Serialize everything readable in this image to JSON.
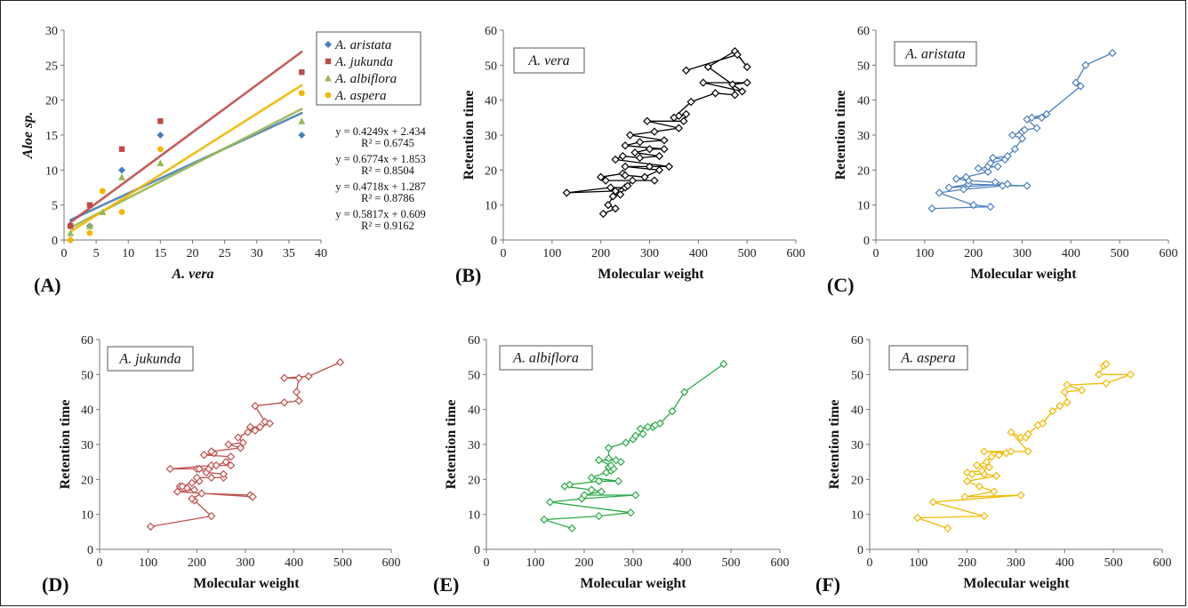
{
  "chart_data": [
    {
      "id": "A",
      "panel_label": "(A)",
      "type": "scatter",
      "xlabel": "A. vera",
      "ylabel": "Aloe sp.",
      "xlim": [
        0,
        40
      ],
      "ylim": [
        0,
        30
      ],
      "x_ticks": [
        "0",
        "5",
        "10",
        "15",
        "20",
        "25",
        "30",
        "35",
        "40"
      ],
      "y_ticks": [
        "0",
        "5",
        "10",
        "15",
        "20",
        "25",
        "30"
      ],
      "legend_position": "top-right",
      "series": [
        {
          "name": "A. aristata",
          "color": "#4a7ebb",
          "marker": "diamond",
          "x": [
            1,
            1,
            4,
            9,
            15,
            37
          ],
          "y": [
            2,
            0,
            2,
            10,
            15,
            15
          ],
          "trend": {
            "slope": 0.4249,
            "intercept": 2.434
          },
          "equation": "y = 0.4249x + 2.434",
          "r2": "R² = 0.6745"
        },
        {
          "name": "A. jukunda",
          "color": "#be4b48",
          "marker": "square",
          "x": [
            1,
            4,
            9,
            15,
            37
          ],
          "y": [
            2,
            5,
            13,
            17,
            24
          ],
          "trend": {
            "slope": 0.6774,
            "intercept": 1.853
          },
          "equation": "y = 0.6774x + 1.853",
          "r2": "R² = 0.8504"
        },
        {
          "name": "A. albiflora",
          "color": "#98b954",
          "marker": "triangle",
          "x": [
            1,
            4,
            6,
            9,
            15,
            37
          ],
          "y": [
            1,
            2,
            4,
            9,
            11,
            17
          ],
          "trend": {
            "slope": 0.4718,
            "intercept": 1.287
          },
          "equation": "y = 0.4718x + 1.287",
          "r2": "R² = 0.8786"
        },
        {
          "name": "A. aspera",
          "color": "#f2b800",
          "marker": "circle",
          "x": [
            1,
            4,
            6,
            9,
            15,
            37
          ],
          "y": [
            0,
            1,
            7,
            4,
            13,
            21
          ],
          "trend": {
            "slope": 0.5817,
            "intercept": 0.609
          },
          "equation": "y = 0.5817x + 0.609",
          "r2": "R² = 0.9162"
        }
      ]
    },
    {
      "id": "B",
      "panel_label": "(B)",
      "type": "line",
      "species_label": "A. vera",
      "color": "#000000",
      "xlabel": "Molecular weight",
      "ylabel": "Retention time",
      "xlim": [
        0,
        600
      ],
      "ylim": [
        0,
        60
      ],
      "x_ticks": [
        "0",
        "100",
        "200",
        "300",
        "400",
        "500",
        "600"
      ],
      "y_ticks": [
        "0",
        "10",
        "20",
        "30",
        "40",
        "50",
        "60"
      ],
      "x": [
        205,
        230,
        215,
        225,
        240,
        250,
        220,
        130,
        230,
        255,
        265,
        310,
        210,
        200,
        245,
        250,
        290,
        320,
        250,
        300,
        340,
        230,
        245,
        280,
        320,
        270,
        300,
        330,
        250,
        280,
        330,
        260,
        310,
        360,
        295,
        370,
        375,
        360,
        350,
        385,
        435,
        475,
        470,
        500,
        410,
        490,
        420,
        475,
        500,
        480,
        375
      ],
      "y": [
        7.5,
        9,
        10,
        12.5,
        13,
        15,
        15,
        13.5,
        14,
        15.5,
        17,
        17,
        17,
        18,
        19,
        18.5,
        18,
        20,
        21,
        21,
        21,
        23,
        24,
        23.5,
        24,
        25,
        26,
        26,
        27,
        28,
        28.5,
        30,
        31,
        32,
        34,
        34,
        36,
        35.5,
        35,
        39.5,
        42,
        41.5,
        44.5,
        45,
        45,
        42.5,
        49.5,
        54,
        49.5,
        53,
        48.5
      ]
    },
    {
      "id": "C",
      "panel_label": "(C)",
      "type": "line",
      "species_label": "A. aristata",
      "color": "#4f81bd",
      "xlabel": "Molecular weight",
      "ylabel": "Retention time",
      "xlim": [
        0,
        600
      ],
      "ylim": [
        0,
        60
      ],
      "x_ticks": [
        "0",
        "100",
        "200",
        "300",
        "400",
        "500",
        "600"
      ],
      "y_ticks": [
        "0",
        "10",
        "20",
        "30",
        "40",
        "50",
        "60"
      ],
      "x": [
        115,
        235,
        200,
        130,
        180,
        260,
        310,
        190,
        150,
        270,
        245,
        190,
        165,
        185,
        230,
        210,
        250,
        230,
        235,
        265,
        240,
        270,
        285,
        300,
        280,
        300,
        305,
        330,
        310,
        340,
        320,
        350,
        420,
        410,
        430,
        485
      ],
      "y": [
        9,
        9.5,
        10,
        13.5,
        14.5,
        15.5,
        15.5,
        16,
        15,
        16,
        16.5,
        17,
        17.5,
        18,
        19.5,
        20.5,
        21,
        21,
        22,
        23,
        23.5,
        24,
        26,
        29,
        30,
        31,
        31.5,
        32,
        34.5,
        35,
        35,
        36,
        44,
        45,
        50,
        53.5
      ]
    },
    {
      "id": "D",
      "panel_label": "(D)",
      "type": "line",
      "species_label": "A. jukunda",
      "color": "#c0504d",
      "xlabel": "Molecular weight",
      "ylabel": "Retention time",
      "xlim": [
        0,
        600
      ],
      "ylim": [
        0,
        60
      ],
      "x_ticks": [
        "0",
        "100",
        "200",
        "300",
        "400",
        "500",
        "600"
      ],
      "y_ticks": [
        "0",
        "10",
        "20",
        "30",
        "40",
        "50",
        "60"
      ],
      "x": [
        105,
        230,
        195,
        190,
        210,
        310,
        315,
        160,
        195,
        180,
        165,
        170,
        190,
        205,
        200,
        230,
        255,
        255,
        220,
        200,
        205,
        225,
        145,
        230,
        270,
        240,
        260,
        270,
        215,
        235,
        230,
        290,
        265,
        295,
        285,
        305,
        320,
        310,
        330,
        350,
        340,
        320,
        380,
        410,
        405,
        410,
        380,
        430,
        495
      ],
      "y": [
        6.5,
        9.5,
        14,
        14.5,
        16,
        15.5,
        15,
        16.5,
        17,
        17.5,
        18,
        18,
        19,
        19.5,
        20.5,
        20.5,
        20.5,
        21.5,
        22,
        23,
        23,
        23,
        23,
        24,
        24,
        24,
        25,
        26.5,
        27,
        27.5,
        28,
        29,
        30,
        30.5,
        32,
        33.5,
        34,
        35,
        35,
        36,
        36.5,
        41,
        42,
        42.5,
        45,
        49,
        49,
        49.5,
        53.5
      ]
    },
    {
      "id": "E",
      "panel_label": "(E)",
      "type": "line",
      "species_label": "A. albiflora",
      "color": "#2daa4a",
      "xlabel": "Molecular weight",
      "ylabel": "Retention time",
      "xlim": [
        0,
        600
      ],
      "ylim": [
        0,
        60
      ],
      "x_ticks": [
        "0",
        "100",
        "200",
        "300",
        "400",
        "500",
        "600"
      ],
      "y_ticks": [
        "0",
        "10",
        "20",
        "30",
        "40",
        "50",
        "60"
      ],
      "x": [
        175,
        118,
        230,
        295,
        130,
        195,
        305,
        200,
        235,
        215,
        160,
        170,
        230,
        270,
        215,
        245,
        255,
        260,
        250,
        255,
        230,
        265,
        275,
        250,
        250,
        285,
        300,
        305,
        320,
        315,
        340,
        330,
        345,
        355,
        380,
        405,
        485
      ],
      "y": [
        6,
        8.5,
        9.5,
        10.5,
        13.5,
        14.5,
        15.5,
        15.5,
        16.5,
        17,
        18,
        18.5,
        19.5,
        19.5,
        20.5,
        22,
        22.5,
        23,
        23.5,
        24,
        25.5,
        25.5,
        25,
        26,
        29,
        30.5,
        31.5,
        32.5,
        33,
        34.5,
        35,
        35,
        35.5,
        36,
        39.5,
        45,
        53
      ]
    },
    {
      "id": "F",
      "panel_label": "(F)",
      "type": "line",
      "species_label": "A. aspera",
      "color": "#f2b800",
      "xlabel": "Molecular weight",
      "ylabel": "Retention time",
      "xlim": [
        0,
        600
      ],
      "ylim": [
        0,
        60
      ],
      "x_ticks": [
        "0",
        "100",
        "200",
        "300",
        "400",
        "500",
        "600"
      ],
      "y_ticks": [
        "0",
        "10",
        "20",
        "30",
        "40",
        "50",
        "60"
      ],
      "x": [
        160,
        98,
        235,
        130,
        310,
        195,
        255,
        225,
        200,
        260,
        235,
        210,
        200,
        230,
        245,
        220,
        240,
        250,
        265,
        280,
        235,
        290,
        325,
        290,
        310,
        320,
        325,
        345,
        355,
        375,
        390,
        405,
        400,
        435,
        405,
        485,
        535,
        470,
        480,
        485
      ],
      "y": [
        6,
        9,
        9.5,
        13.5,
        15.5,
        15,
        16.5,
        18,
        19.5,
        21,
        21.5,
        21.5,
        22,
        22.5,
        23.5,
        24,
        25,
        26.5,
        27,
        27.5,
        28,
        28,
        28,
        33.5,
        32,
        32,
        33,
        35.5,
        36,
        39.5,
        41,
        42,
        45,
        45.5,
        47,
        47.5,
        50,
        50,
        52.5,
        53
      ]
    }
  ]
}
